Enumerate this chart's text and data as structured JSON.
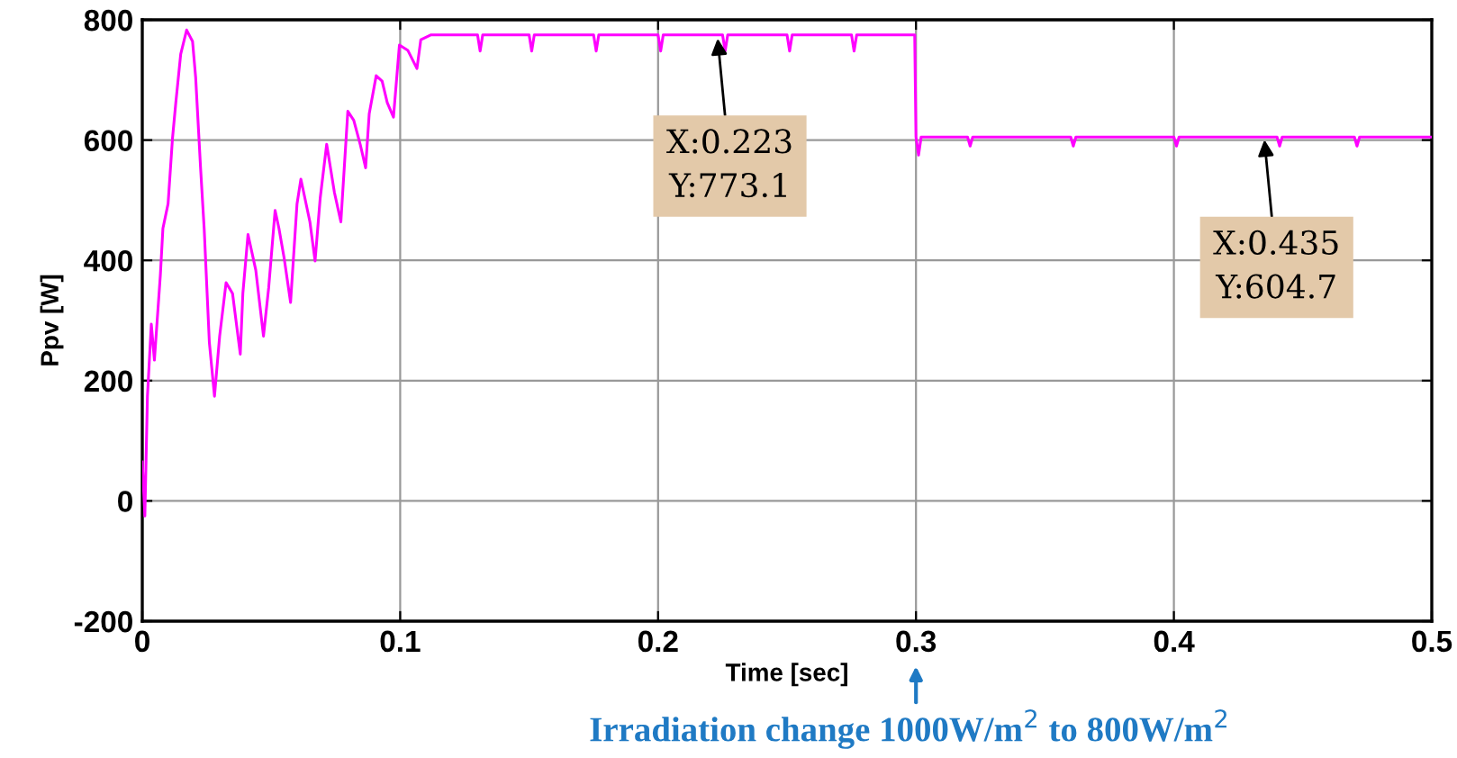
{
  "chart_data": {
    "type": "line",
    "xlabel": "Time [sec]",
    "ylabel": "Ppv [W]",
    "xlim": [
      0,
      0.5
    ],
    "ylim": [
      -200,
      800
    ],
    "xticks": [
      0,
      0.1,
      0.2,
      0.3,
      0.4,
      0.5
    ],
    "yticks": [
      -200,
      0,
      200,
      400,
      600,
      800
    ],
    "grid": true,
    "series": [
      {
        "color": "#ff00ff",
        "x": [
          0,
          0.001,
          0.002,
          0.0035,
          0.0047,
          0.007,
          0.008,
          0.01,
          0.0117,
          0.013,
          0.0149,
          0.0172,
          0.0195,
          0.0207,
          0.0226,
          0.024,
          0.026,
          0.028,
          0.03,
          0.0325,
          0.035,
          0.038,
          0.039,
          0.041,
          0.044,
          0.047,
          0.049,
          0.0515,
          0.053,
          0.055,
          0.0575,
          0.06,
          0.0615,
          0.065,
          0.067,
          0.069,
          0.0715,
          0.0745,
          0.077,
          0.0797,
          0.082,
          0.0845,
          0.0866,
          0.088,
          0.0907,
          0.093,
          0.095,
          0.0974,
          0.0997,
          0.103,
          0.1065,
          0.108,
          0.112,
          0.13,
          0.131,
          0.132,
          0.15,
          0.151,
          0.152,
          0.175,
          0.176,
          0.177,
          0.2,
          0.201,
          0.202,
          0.225,
          0.226,
          0.227,
          0.25,
          0.251,
          0.252,
          0.275,
          0.276,
          0.277,
          0.2995,
          0.3,
          0.301,
          0.302,
          0.32,
          0.321,
          0.322,
          0.36,
          0.361,
          0.362,
          0.4,
          0.401,
          0.402,
          0.44,
          0.441,
          0.442,
          0.47,
          0.471,
          0.472,
          0.5
        ],
        "values": [
          65,
          -25,
          174,
          294,
          234,
          375,
          453,
          494,
          602,
          662,
          743,
          783,
          764,
          704,
          554,
          453,
          264,
          174,
          274,
          363,
          345,
          244,
          345,
          443,
          384,
          274,
          354,
          483,
          453,
          404,
          330,
          494,
          535,
          464,
          399,
          504,
          593,
          513,
          464,
          648,
          633,
          593,
          554,
          644,
          707,
          698,
          662,
          638,
          758,
          749,
          719,
          767,
          775,
          775,
          748,
          775,
          775,
          748,
          775,
          775,
          748,
          775,
          775,
          748,
          775,
          775,
          748,
          775,
          775,
          748,
          775,
          775,
          748,
          775,
          775,
          605,
          575,
          605,
          605,
          590,
          605,
          605,
          590,
          605,
          605,
          590,
          605,
          605,
          590,
          605,
          605,
          590,
          605,
          605
        ]
      }
    ],
    "annotations": [
      {
        "text": "X:0.223\nY:773.1",
        "x": 0.223,
        "y": 773.1
      },
      {
        "text": "X:0.435\nY:604.7",
        "x": 0.435,
        "y": 604.7
      },
      "Irradiation change 1000W/m$^{2}$ to 800W/m$^{2}$"
    ]
  }
}
